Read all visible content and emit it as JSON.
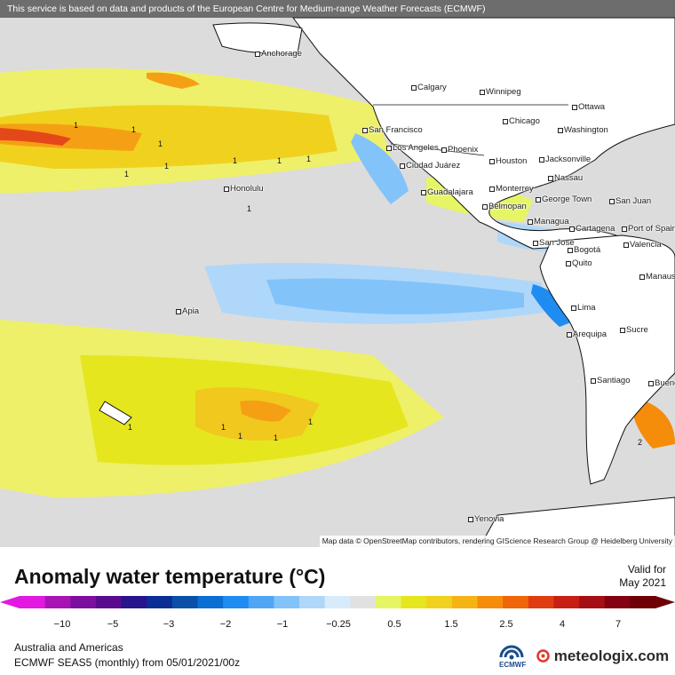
{
  "map": {
    "banner": "This service is based on data and products of the European Centre for Medium-range Weather Forecasts (ECMWF)",
    "attribution": "Map data © OpenStreetMap contributors, rendering GIScience Research Group @ Heidelberg University",
    "contour_labels": [
      "1",
      "1",
      "1",
      "1",
      "1",
      "1",
      "1",
      "1",
      "1",
      "1",
      "1",
      "1",
      "1",
      "1",
      "2"
    ],
    "cities": [
      {
        "name": "Anchorage"
      },
      {
        "name": "Calgary"
      },
      {
        "name": "Winnipeg"
      },
      {
        "name": "Ottawa"
      },
      {
        "name": "Chicago"
      },
      {
        "name": "Washington"
      },
      {
        "name": "San Francisco"
      },
      {
        "name": "Los Angeles"
      },
      {
        "name": "Phoenix"
      },
      {
        "name": "Ciudad Juárez"
      },
      {
        "name": "Houston"
      },
      {
        "name": "Jacksonville"
      },
      {
        "name": "Nassau"
      },
      {
        "name": "Honolulu"
      },
      {
        "name": "Guadalajara"
      },
      {
        "name": "Monterrey"
      },
      {
        "name": "George Town"
      },
      {
        "name": "San Juan"
      },
      {
        "name": "Belmopan"
      },
      {
        "name": "Managua"
      },
      {
        "name": "Cartagena"
      },
      {
        "name": "Port of Spain"
      },
      {
        "name": "San José"
      },
      {
        "name": "Bogotá"
      },
      {
        "name": "Valencia"
      },
      {
        "name": "Quito"
      },
      {
        "name": "Manaus"
      },
      {
        "name": "Apia"
      },
      {
        "name": "Lima"
      },
      {
        "name": "Sucre"
      },
      {
        "name": "Arequipa"
      },
      {
        "name": "Santiago"
      },
      {
        "name": "Buenos Aires"
      },
      {
        "name": "Yenovia"
      }
    ]
  },
  "legend": {
    "title": "Anomaly water temperature (°C)",
    "valid_label": "Valid for",
    "valid_date": "May 2021",
    "ticks": [
      "−10",
      "−5",
      "−3",
      "−2",
      "−1",
      "−0.25",
      "0.5",
      "1.5",
      "2.5",
      "4",
      "7"
    ],
    "colors": [
      "#e119e1",
      "#a814b4",
      "#7d0fa0",
      "#5a0a8c",
      "#28148c",
      "#0a2d96",
      "#0a50a8",
      "#0a6ed2",
      "#1e8cf0",
      "#50a5f5",
      "#82c3fa",
      "#afd7fa",
      "#d7ebfa",
      "#e1e1e1",
      "#e6f564",
      "#e6e61e",
      "#f0d21e",
      "#f5b414",
      "#f58c0a",
      "#f0640a",
      "#e13c0f",
      "#c81e14",
      "#a50f14",
      "#82000f",
      "#6e0005"
    ]
  },
  "footer": {
    "region": "Australia and Americas",
    "model": "ECMWF SEAS5 (monthly)  from  05/01/2021/00z",
    "ecmwf_label": "ECMWF",
    "brand": "meteologix.com"
  }
}
